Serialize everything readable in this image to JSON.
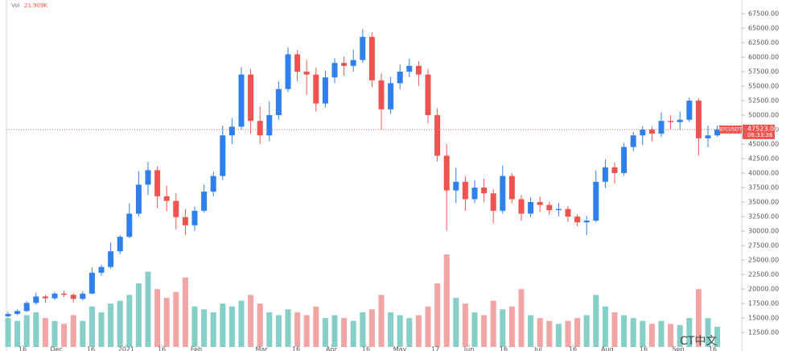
{
  "chart_data": {
    "type": "candlestick",
    "symbol": "BTCUSDT",
    "last_price_label": "47523.00",
    "countdown": "06:33:36",
    "volume_label": "Vol",
    "volume_value": "21.909K",
    "watermark": "CT中文",
    "up_color": "#2f80ed",
    "down_color": "#ef5350",
    "volume_up_color": "#86cfc8",
    "volume_down_color": "#f2a5a5",
    "open": [
      15300,
      15700,
      16200,
      17600,
      18700,
      18400,
      19200,
      19000,
      18300,
      19200,
      22800,
      23800,
      26500,
      29000,
      33000,
      38000,
      40500,
      36000,
      35200,
      32400,
      31000,
      33500,
      36800,
      39500,
      46500,
      48000,
      57000,
      49000,
      46500,
      50000,
      54500,
      60500,
      57500,
      57000,
      52000,
      56500,
      59000,
      58500,
      59500,
      63500,
      56000,
      51000,
      55500,
      57500,
      58500,
      57000,
      50000,
      43000,
      37000,
      38500,
      35500,
      37500,
      36500,
      33500,
      39500,
      35500,
      33000,
      35000,
      34500,
      33600,
      33800,
      32500,
      31500,
      31800,
      38500,
      41000,
      40000,
      44500,
      46500,
      47500,
      46800,
      49000,
      48800,
      49200,
      52500,
      46000,
      46500
    ],
    "high": [
      16100,
      16500,
      17900,
      19400,
      19000,
      19500,
      19700,
      19300,
      19600,
      23700,
      24200,
      28000,
      29300,
      34800,
      40300,
      41900,
      41200,
      37800,
      36500,
      33800,
      34200,
      38000,
      40200,
      48200,
      49500,
      58300,
      58000,
      51500,
      52400,
      55800,
      61700,
      61200,
      59500,
      58200,
      57700,
      59800,
      60100,
      61300,
      64800,
      64300,
      57200,
      56600,
      58700,
      59700,
      59300,
      58000,
      51200,
      45000,
      40900,
      39500,
      38800,
      39000,
      37200,
      41300,
      40000,
      36200,
      35800,
      36000,
      35100,
      34900,
      34300,
      32900,
      32600,
      40500,
      42400,
      41800,
      45200,
      47100,
      48100,
      48000,
      50500,
      50000,
      50600,
      53000,
      52900,
      48200,
      48200
    ],
    "low": [
      15100,
      15500,
      16000,
      17300,
      17600,
      18100,
      18600,
      17700,
      18000,
      19100,
      22300,
      23500,
      26000,
      28800,
      32500,
      36200,
      34000,
      33400,
      30300,
      29300,
      30000,
      33200,
      36000,
      38800,
      45000,
      47500,
      46800,
      45000,
      45500,
      49200,
      54000,
      55800,
      53500,
      50600,
      51300,
      55500,
      56800,
      57500,
      59000,
      54800,
      47500,
      50200,
      54500,
      56500,
      55000,
      48600,
      42000,
      30100,
      34800,
      33500,
      34800,
      35000,
      31300,
      33000,
      34800,
      31800,
      32400,
      33300,
      32800,
      32500,
      31600,
      30800,
      29300,
      31500,
      37400,
      38200,
      39500,
      43800,
      44800,
      45500,
      46200,
      47600,
      47400,
      48800,
      43000,
      44500,
      46300
    ],
    "close": [
      15700,
      16200,
      17600,
      18700,
      18400,
      19200,
      19000,
      18300,
      19200,
      22800,
      23800,
      26500,
      29000,
      33000,
      38000,
      40500,
      36000,
      35200,
      32400,
      31000,
      33500,
      36800,
      39500,
      46500,
      48000,
      57000,
      49000,
      46500,
      50000,
      54500,
      60500,
      57500,
      57000,
      52000,
      56500,
      59000,
      58500,
      59500,
      63500,
      56000,
      51000,
      55500,
      57500,
      58500,
      57000,
      50000,
      43000,
      37000,
      38500,
      35500,
      37500,
      36500,
      33500,
      39500,
      35500,
      33000,
      35000,
      34500,
      33600,
      33800,
      32500,
      31500,
      31800,
      38500,
      41000,
      40000,
      44500,
      46500,
      47500,
      46800,
      49000,
      48800,
      49200,
      52500,
      46000,
      46500,
      47523
    ],
    "volume": [
      50,
      45,
      55,
      60,
      50,
      45,
      40,
      55,
      45,
      70,
      60,
      75,
      80,
      90,
      110,
      130,
      100,
      85,
      95,
      120,
      70,
      65,
      60,
      75,
      70,
      80,
      90,
      75,
      60,
      55,
      65,
      60,
      55,
      70,
      50,
      55,
      50,
      45,
      60,
      65,
      90,
      60,
      55,
      50,
      55,
      70,
      110,
      160,
      85,
      75,
      60,
      55,
      80,
      65,
      70,
      100,
      55,
      50,
      45,
      40,
      45,
      50,
      55,
      90,
      70,
      60,
      55,
      50,
      45,
      40,
      45,
      40,
      38,
      50,
      100,
      50,
      35
    ],
    "ylim": [
      10000,
      69000
    ],
    "yticks": [
      {
        "value": 12500,
        "label": "12500.00"
      },
      {
        "value": 15000,
        "label": "15000.00"
      },
      {
        "value": 17500,
        "label": "17500.00"
      },
      {
        "value": 20000,
        "label": "20000.00"
      },
      {
        "value": 22500,
        "label": "22500.00"
      },
      {
        "value": 25000,
        "label": "25000.00"
      },
      {
        "value": 27500,
        "label": "27500.00"
      },
      {
        "value": 30000,
        "label": "30000.00"
      },
      {
        "value": 32500,
        "label": "32500.00"
      },
      {
        "value": 35000,
        "label": "35000.00"
      },
      {
        "value": 37500,
        "label": "37500.00"
      },
      {
        "value": 40000,
        "label": "40000.00"
      },
      {
        "value": 42500,
        "label": "42500.00"
      },
      {
        "value": 45000,
        "label": "45000.00"
      },
      {
        "value": 47500,
        "label": "47500.00"
      },
      {
        "value": 50000,
        "label": "50000.00"
      },
      {
        "value": 52500,
        "label": "52500.00"
      },
      {
        "value": 55000,
        "label": "55000.00"
      },
      {
        "value": 57500,
        "label": "57500.00"
      },
      {
        "value": 60000,
        "label": "60000.00"
      },
      {
        "value": 62500,
        "label": "62500.00"
      },
      {
        "value": 65000,
        "label": "65000.00"
      },
      {
        "value": 67500,
        "label": "67500.00"
      }
    ],
    "xticks": [
      {
        "value": 1.55,
        "label": "16"
      },
      {
        "value": 5.17,
        "label": "Dec"
      },
      {
        "value": 8.88,
        "label": "16"
      },
      {
        "value": 12.67,
        "label": "2021"
      },
      {
        "value": 16.47,
        "label": "16"
      },
      {
        "value": 20.17,
        "label": "Feb"
      },
      {
        "value": 27.16,
        "label": "Mar"
      },
      {
        "value": 30.86,
        "label": "16"
      },
      {
        "value": 34.66,
        "label": "Apr"
      },
      {
        "value": 38.36,
        "label": "16"
      },
      {
        "value": 41.98,
        "label": "May"
      },
      {
        "value": 45.78,
        "label": "17"
      },
      {
        "value": 49.4,
        "label": "Jun"
      },
      {
        "value": 53.1,
        "label": "16"
      },
      {
        "value": 56.81,
        "label": "Jul"
      },
      {
        "value": 60.52,
        "label": "16"
      },
      {
        "value": 64.22,
        "label": "Aug"
      },
      {
        "value": 68.1,
        "label": "16"
      },
      {
        "value": 71.81,
        "label": "Sep"
      },
      {
        "value": 75.52,
        "label": "16"
      }
    ]
  }
}
